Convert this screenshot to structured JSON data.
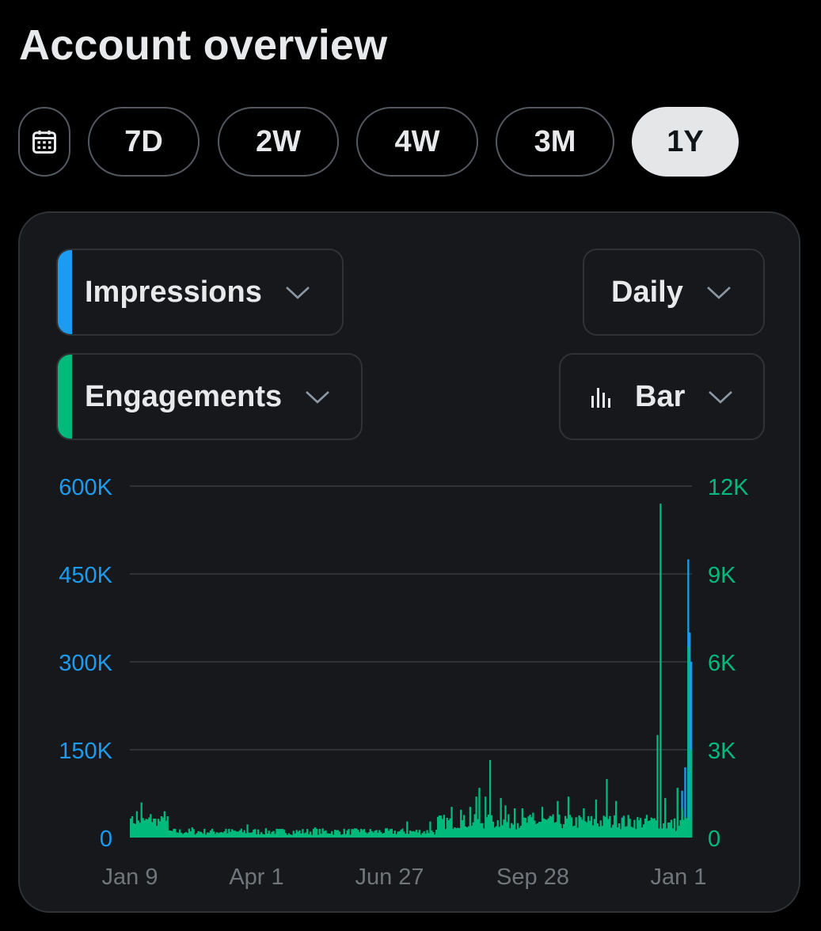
{
  "page": {
    "title": "Account overview"
  },
  "range": {
    "options": [
      "7D",
      "2W",
      "4W",
      "3M",
      "1Y"
    ],
    "selected": "1Y"
  },
  "controls": {
    "metric1": {
      "label": "Impressions",
      "color": "#1d9bf0"
    },
    "metric2": {
      "label": "Engagements",
      "color": "#00ba7c"
    },
    "interval": {
      "label": "Daily"
    },
    "chart_type": {
      "label": "Bar"
    }
  },
  "icons": [
    "calendar-icon",
    "chevron-down-icon",
    "bar-chart-icon"
  ],
  "chart_data": {
    "type": "bar",
    "grid": true,
    "x_ticks": [
      "Jan 9",
      "Apr 1",
      "Jun 27",
      "Sep 28",
      "Jan 1"
    ],
    "y_left": {
      "ticks": [
        "600K",
        "450K",
        "300K",
        "150K",
        "0"
      ],
      "range": [
        0,
        600000
      ],
      "color": "#1d9bf0"
    },
    "y_right": {
      "ticks": [
        "12K",
        "9K",
        "6K",
        "3K",
        "0"
      ],
      "range": [
        0,
        12000
      ],
      "color": "#00ba7c"
    },
    "series": [
      {
        "name": "Impressions",
        "axis": "left",
        "color": "#1d9bf0",
        "sparse_days": [
          [
            200,
            5000
          ],
          [
            271,
            25000
          ],
          [
            320,
            34000
          ],
          [
            339,
            20000
          ],
          [
            345,
            18000
          ],
          [
            356,
            15000
          ],
          [
            359,
            80000
          ],
          [
            361,
            120000
          ],
          [
            363,
            475000
          ],
          [
            364,
            350000
          ],
          [
            365,
            300000
          ]
        ]
      },
      {
        "name": "Engagements",
        "axis": "right",
        "color": "#00ba7c",
        "sparse_days": [
          [
            0,
            650
          ],
          [
            4,
            900
          ],
          [
            7,
            1200
          ],
          [
            13,
            800
          ],
          [
            22,
            900
          ],
          [
            40,
            350
          ],
          [
            62,
            300
          ],
          [
            76,
            450
          ],
          [
            95,
            300
          ],
          [
            120,
            350
          ],
          [
            150,
            300
          ],
          [
            180,
            550
          ],
          [
            195,
            550
          ],
          [
            209,
            1050
          ],
          [
            215,
            950
          ],
          [
            221,
            1050
          ],
          [
            225,
            1400
          ],
          [
            227,
            1700
          ],
          [
            231,
            1400
          ],
          [
            234,
            1400
          ],
          [
            234,
            2650
          ],
          [
            241,
            1350
          ],
          [
            244,
            1100
          ],
          [
            250,
            1000
          ],
          [
            255,
            1000
          ],
          [
            262,
            850
          ],
          [
            268,
            1050
          ],
          [
            278,
            1250
          ],
          [
            285,
            1400
          ],
          [
            295,
            1000
          ],
          [
            303,
            1300
          ],
          [
            310,
            2000
          ],
          [
            316,
            1250
          ],
          [
            330,
            700
          ],
          [
            343,
            3500
          ],
          [
            345,
            11400
          ],
          [
            348,
            1350
          ],
          [
            352,
            400
          ],
          [
            356,
            1700
          ],
          [
            359,
            1000
          ],
          [
            361,
            700
          ],
          [
            363,
            6500
          ],
          [
            365,
            3000
          ]
        ]
      }
    ]
  }
}
